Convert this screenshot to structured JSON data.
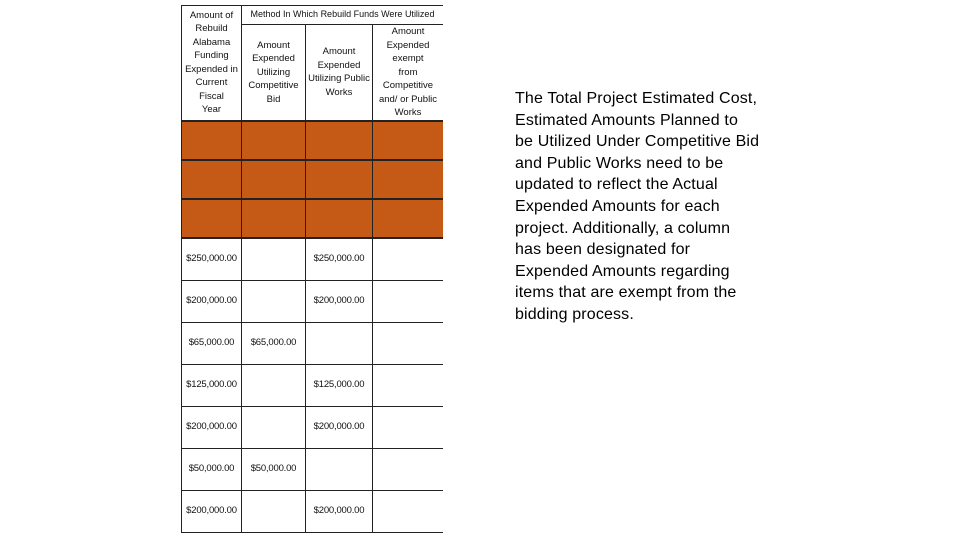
{
  "table": {
    "col_amount_header": "Amount of Rebuild Alabama Funding Expended in Current Fiscal Year",
    "col_amount_header_lines": [
      "Amount of",
      "Rebuild",
      "Alabama",
      "Funding",
      "Expended in",
      "Current Fiscal",
      "Year"
    ],
    "method_header": "Method In Which Rebuild Funds Were Utilized",
    "sub_headers": [
      {
        "lines": [
          "Amount",
          "Expended",
          "Utilizing",
          "Competitive Bid"
        ]
      },
      {
        "lines": [
          "Amount",
          "Expended",
          "Utilizing Public",
          "Works"
        ]
      },
      {
        "lines": [
          "Amount",
          "Expended exempt",
          "from Competitive",
          "and/ or Public",
          "Works"
        ]
      }
    ],
    "rows": [
      {
        "total": "$250,000.00",
        "competitive": "",
        "public": "$250,000.00",
        "exempt": ""
      },
      {
        "total": "$200,000.00",
        "competitive": "",
        "public": "$200,000.00",
        "exempt": ""
      },
      {
        "total": "$65,000.00",
        "competitive": "$65,000.00",
        "public": "",
        "exempt": ""
      },
      {
        "total": "$125,000.00",
        "competitive": "",
        "public": "$125,000.00",
        "exempt": ""
      },
      {
        "total": "$200,000.00",
        "competitive": "",
        "public": "$200,000.00",
        "exempt": ""
      },
      {
        "total": "$50,000.00",
        "competitive": "$50,000.00",
        "public": "",
        "exempt": ""
      },
      {
        "total": "$200,000.00",
        "competitive": "",
        "public": "$200,000.00",
        "exempt": ""
      }
    ],
    "highlight_color": "#c55a17"
  },
  "description": {
    "text": "The Total Project Estimated Cost, Estimated Amounts Planned to be Utilized Under Competitive Bid and Public Works need to be updated to reflect the Actual Expended Amounts for each project. Additionally, a column has been designated for Expended Amounts regarding items that are exempt from the bidding process.",
    "lines": [
      "The Total Project Estimated Cost,",
      "Estimated Amounts Planned to",
      "be Utilized Under Competitive Bid",
      "and Public Works need to be",
      "updated to reflect the Actual",
      "Expended Amounts for each",
      "project. Additionally, a column",
      "has been designated for",
      "Expended Amounts regarding",
      "items that are exempt from the",
      "bidding process."
    ]
  }
}
